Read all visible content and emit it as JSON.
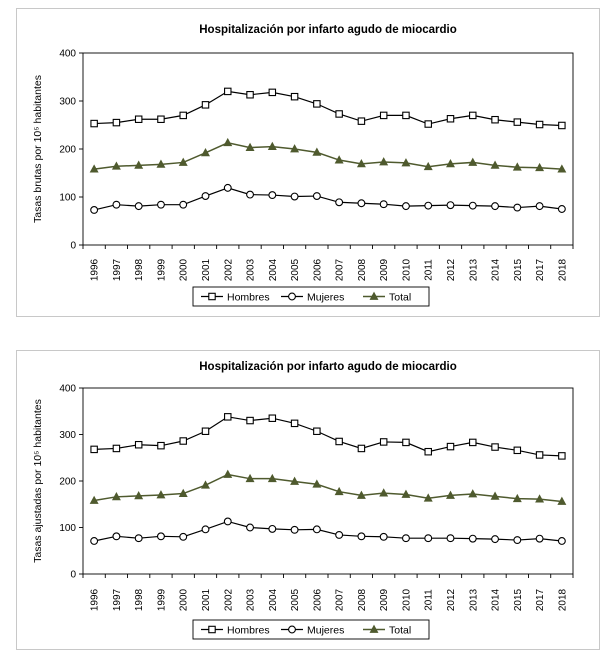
{
  "chart_data": [
    {
      "type": "line",
      "title": "Hospitalización por infarto agudo de miocardio",
      "ylabel": "Tasas brutas por 10⁵ habitantes",
      "xlabel": "",
      "ylim": [
        0,
        400
      ],
      "yticks": [
        "0",
        "100",
        "200",
        "300",
        "400"
      ],
      "categories": [
        "1996",
        "1997",
        "1998",
        "1999",
        "2000",
        "2001",
        "2002",
        "2003",
        "2004",
        "2005",
        "2006",
        "2007",
        "2008",
        "2009",
        "2010",
        "2011",
        "2012",
        "2013",
        "2014",
        "2015",
        "2017",
        "2018"
      ],
      "legend_position": "bottom",
      "series": [
        {
          "name": "Hombres",
          "marker": "square",
          "color": "#000000",
          "values": [
            253,
            255,
            262,
            262,
            270,
            292,
            320,
            313,
            318,
            309,
            294,
            273,
            258,
            270,
            270,
            252,
            263,
            270,
            261,
            256,
            251,
            249
          ]
        },
        {
          "name": "Mujeres",
          "marker": "circle",
          "color": "#000000",
          "values": [
            73,
            84,
            81,
            84,
            84,
            102,
            119,
            105,
            104,
            101,
            102,
            89,
            87,
            85,
            81,
            82,
            83,
            82,
            81,
            78,
            81,
            75
          ]
        },
        {
          "name": "Total",
          "marker": "triangle",
          "color": "#4f5a2e",
          "values": [
            158,
            164,
            166,
            168,
            172,
            192,
            213,
            203,
            205,
            200,
            193,
            177,
            169,
            173,
            171,
            163,
            169,
            172,
            166,
            162,
            161,
            158
          ]
        }
      ]
    },
    {
      "type": "line",
      "title": "Hospitalización por infarto agudo de miocardio",
      "ylabel": "Tasas ajustadas por 10⁵ habitantes",
      "xlabel": "",
      "ylim": [
        0,
        400
      ],
      "yticks": [
        "0",
        "100",
        "200",
        "300",
        "400"
      ],
      "categories": [
        "1996",
        "1997",
        "1998",
        "1999",
        "2000",
        "2001",
        "2002",
        "2003",
        "2004",
        "2005",
        "2006",
        "2007",
        "2008",
        "2009",
        "2010",
        "2011",
        "2012",
        "2013",
        "2014",
        "2015",
        "2017",
        "2018"
      ],
      "legend_position": "bottom",
      "series": [
        {
          "name": "Hombres",
          "marker": "square",
          "color": "#000000",
          "values": [
            268,
            270,
            278,
            276,
            286,
            307,
            338,
            330,
            335,
            324,
            307,
            285,
            270,
            284,
            283,
            263,
            274,
            283,
            273,
            266,
            256,
            254
          ]
        },
        {
          "name": "Mujeres",
          "marker": "circle",
          "color": "#000000",
          "values": [
            71,
            81,
            77,
            81,
            80,
            96,
            113,
            100,
            97,
            95,
            96,
            84,
            81,
            80,
            77,
            77,
            77,
            76,
            75,
            73,
            76,
            71
          ]
        },
        {
          "name": "Total",
          "marker": "triangle",
          "color": "#4f5a2e",
          "values": [
            158,
            166,
            168,
            170,
            173,
            191,
            214,
            205,
            205,
            199,
            193,
            177,
            169,
            174,
            171,
            163,
            169,
            172,
            167,
            162,
            161,
            156
          ]
        }
      ]
    }
  ]
}
